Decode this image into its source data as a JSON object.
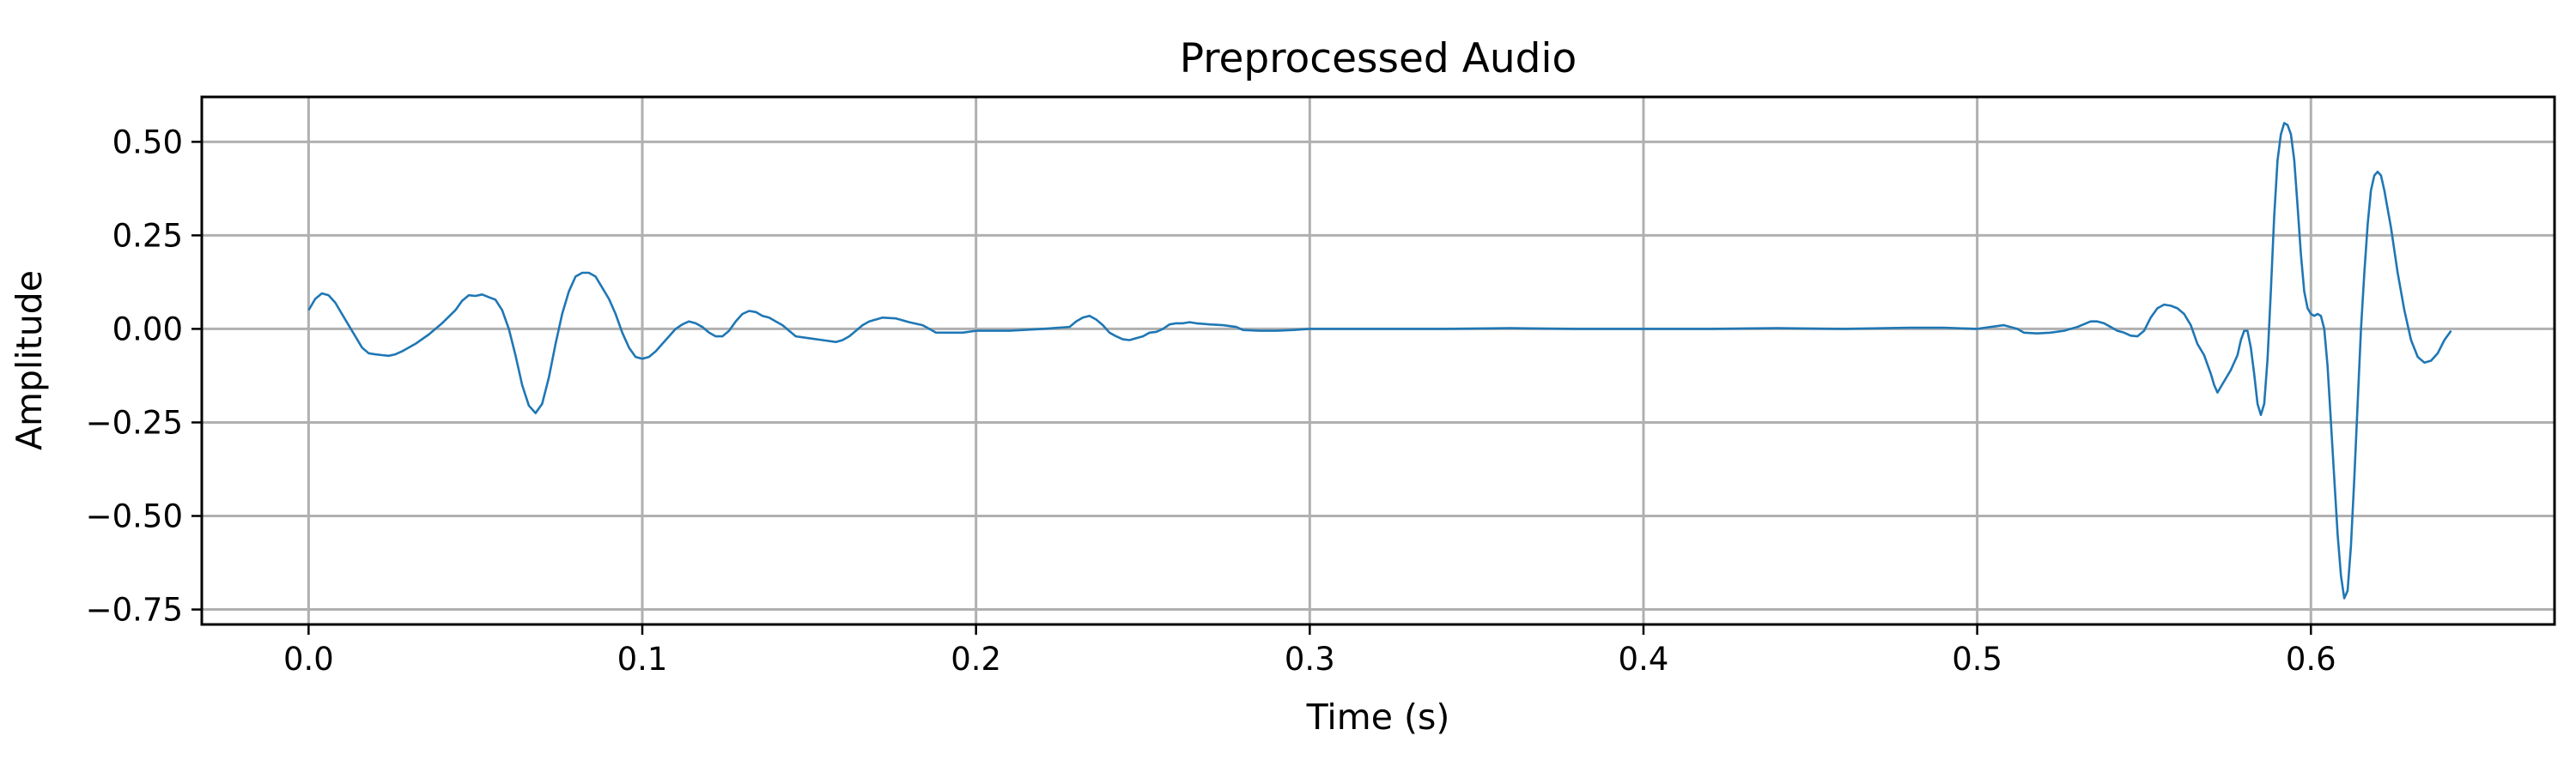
{
  "chart_data": {
    "type": "line",
    "title": "Preprocessed Audio",
    "xlabel": "Time (s)",
    "ylabel": "Amplitude",
    "xlim": [
      -0.032,
      0.673
    ],
    "ylim": [
      -0.79,
      0.62
    ],
    "x_ticks": [
      0.0,
      0.1,
      0.2,
      0.3,
      0.4,
      0.5,
      0.6
    ],
    "x_tick_labels": [
      "0.0",
      "0.1",
      "0.2",
      "0.3",
      "0.4",
      "0.5",
      "0.6"
    ],
    "y_ticks": [
      0.5,
      0.25,
      0.0,
      -0.25,
      -0.5,
      -0.75
    ],
    "y_tick_labels": [
      "0.50",
      "0.25",
      "0.00",
      "−0.25",
      "−0.50",
      "−0.75"
    ],
    "grid": true,
    "series_color": "#1f77b4",
    "series": [
      {
        "points": [
          [
            0.0,
            0.05
          ],
          [
            0.002,
            0.08
          ],
          [
            0.004,
            0.095
          ],
          [
            0.006,
            0.09
          ],
          [
            0.008,
            0.07
          ],
          [
            0.01,
            0.04
          ],
          [
            0.012,
            0.01
          ],
          [
            0.014,
            -0.02
          ],
          [
            0.016,
            -0.05
          ],
          [
            0.018,
            -0.065
          ],
          [
            0.02,
            -0.068
          ],
          [
            0.022,
            -0.07
          ],
          [
            0.024,
            -0.072
          ],
          [
            0.026,
            -0.068
          ],
          [
            0.028,
            -0.06
          ],
          [
            0.032,
            -0.04
          ],
          [
            0.036,
            -0.015
          ],
          [
            0.04,
            0.015
          ],
          [
            0.044,
            0.05
          ],
          [
            0.046,
            0.075
          ],
          [
            0.048,
            0.09
          ],
          [
            0.05,
            0.088
          ],
          [
            0.052,
            0.092
          ],
          [
            0.054,
            0.085
          ],
          [
            0.056,
            0.078
          ],
          [
            0.058,
            0.05
          ],
          [
            0.06,
            0.0
          ],
          [
            0.062,
            -0.07
          ],
          [
            0.064,
            -0.15
          ],
          [
            0.066,
            -0.205
          ],
          [
            0.068,
            -0.225
          ],
          [
            0.07,
            -0.2
          ],
          [
            0.072,
            -0.13
          ],
          [
            0.074,
            -0.04
          ],
          [
            0.076,
            0.04
          ],
          [
            0.078,
            0.1
          ],
          [
            0.08,
            0.14
          ],
          [
            0.082,
            0.15
          ],
          [
            0.084,
            0.15
          ],
          [
            0.086,
            0.14
          ],
          [
            0.088,
            0.11
          ],
          [
            0.09,
            0.08
          ],
          [
            0.092,
            0.04
          ],
          [
            0.094,
            -0.01
          ],
          [
            0.096,
            -0.05
          ],
          [
            0.098,
            -0.075
          ],
          [
            0.1,
            -0.08
          ],
          [
            0.102,
            -0.075
          ],
          [
            0.104,
            -0.06
          ],
          [
            0.106,
            -0.04
          ],
          [
            0.108,
            -0.02
          ],
          [
            0.11,
            0.0
          ],
          [
            0.112,
            0.012
          ],
          [
            0.114,
            0.02
          ],
          [
            0.116,
            0.015
          ],
          [
            0.118,
            0.005
          ],
          [
            0.12,
            -0.01
          ],
          [
            0.122,
            -0.02
          ],
          [
            0.124,
            -0.02
          ],
          [
            0.126,
            -0.005
          ],
          [
            0.128,
            0.02
          ],
          [
            0.13,
            0.04
          ],
          [
            0.132,
            0.048
          ],
          [
            0.134,
            0.045
          ],
          [
            0.136,
            0.035
          ],
          [
            0.138,
            0.03
          ],
          [
            0.14,
            0.02
          ],
          [
            0.142,
            0.01
          ],
          [
            0.144,
            -0.005
          ],
          [
            0.146,
            -0.02
          ],
          [
            0.15,
            -0.025
          ],
          [
            0.154,
            -0.03
          ],
          [
            0.158,
            -0.035
          ],
          [
            0.16,
            -0.03
          ],
          [
            0.162,
            -0.02
          ],
          [
            0.164,
            -0.005
          ],
          [
            0.166,
            0.01
          ],
          [
            0.168,
            0.02
          ],
          [
            0.17,
            0.025
          ],
          [
            0.172,
            0.03
          ],
          [
            0.176,
            0.028
          ],
          [
            0.18,
            0.018
          ],
          [
            0.184,
            0.01
          ],
          [
            0.186,
            0.0
          ],
          [
            0.188,
            -0.01
          ],
          [
            0.192,
            -0.01
          ],
          [
            0.196,
            -0.01
          ],
          [
            0.2,
            -0.005
          ],
          [
            0.21,
            -0.005
          ],
          [
            0.22,
            0.0
          ],
          [
            0.228,
            0.005
          ],
          [
            0.23,
            0.02
          ],
          [
            0.232,
            0.03
          ],
          [
            0.234,
            0.035
          ],
          [
            0.236,
            0.025
          ],
          [
            0.238,
            0.01
          ],
          [
            0.24,
            -0.01
          ],
          [
            0.242,
            -0.02
          ],
          [
            0.244,
            -0.028
          ],
          [
            0.246,
            -0.03
          ],
          [
            0.248,
            -0.025
          ],
          [
            0.25,
            -0.02
          ],
          [
            0.252,
            -0.01
          ],
          [
            0.254,
            -0.008
          ],
          [
            0.256,
            0.0
          ],
          [
            0.258,
            0.012
          ],
          [
            0.26,
            0.015
          ],
          [
            0.262,
            0.015
          ],
          [
            0.264,
            0.018
          ],
          [
            0.266,
            0.015
          ],
          [
            0.27,
            0.012
          ],
          [
            0.274,
            0.01
          ],
          [
            0.278,
            0.005
          ],
          [
            0.28,
            -0.003
          ],
          [
            0.285,
            -0.005
          ],
          [
            0.29,
            -0.005
          ],
          [
            0.295,
            -0.003
          ],
          [
            0.3,
            0.0
          ],
          [
            0.31,
            0.0
          ],
          [
            0.32,
            0.0
          ],
          [
            0.34,
            0.0
          ],
          [
            0.36,
            0.002
          ],
          [
            0.38,
            0.0
          ],
          [
            0.4,
            0.0
          ],
          [
            0.42,
            0.0
          ],
          [
            0.44,
            0.002
          ],
          [
            0.46,
            0.0
          ],
          [
            0.48,
            0.003
          ],
          [
            0.49,
            0.003
          ],
          [
            0.5,
            0.0
          ],
          [
            0.504,
            0.005
          ],
          [
            0.508,
            0.01
          ],
          [
            0.512,
            0.0
          ],
          [
            0.514,
            -0.01
          ],
          [
            0.518,
            -0.012
          ],
          [
            0.522,
            -0.01
          ],
          [
            0.526,
            -0.005
          ],
          [
            0.53,
            0.005
          ],
          [
            0.534,
            0.02
          ],
          [
            0.536,
            0.02
          ],
          [
            0.538,
            0.015
          ],
          [
            0.54,
            0.005
          ],
          [
            0.542,
            -0.005
          ],
          [
            0.544,
            -0.01
          ],
          [
            0.546,
            -0.018
          ],
          [
            0.548,
            -0.02
          ],
          [
            0.55,
            -0.005
          ],
          [
            0.552,
            0.03
          ],
          [
            0.554,
            0.055
          ],
          [
            0.556,
            0.065
          ],
          [
            0.558,
            0.062
          ],
          [
            0.56,
            0.055
          ],
          [
            0.562,
            0.04
          ],
          [
            0.564,
            0.01
          ],
          [
            0.566,
            -0.04
          ],
          [
            0.568,
            -0.07
          ],
          [
            0.57,
            -0.12
          ],
          [
            0.571,
            -0.15
          ],
          [
            0.572,
            -0.17
          ],
          [
            0.574,
            -0.14
          ],
          [
            0.576,
            -0.11
          ],
          [
            0.578,
            -0.07
          ],
          [
            0.579,
            -0.03
          ],
          [
            0.58,
            -0.005
          ],
          [
            0.581,
            -0.005
          ],
          [
            0.582,
            -0.05
          ],
          [
            0.583,
            -0.12
          ],
          [
            0.584,
            -0.2
          ],
          [
            0.585,
            -0.23
          ],
          [
            0.586,
            -0.2
          ],
          [
            0.587,
            -0.08
          ],
          [
            0.588,
            0.1
          ],
          [
            0.589,
            0.3
          ],
          [
            0.59,
            0.45
          ],
          [
            0.591,
            0.52
          ],
          [
            0.592,
            0.55
          ],
          [
            0.593,
            0.545
          ],
          [
            0.594,
            0.52
          ],
          [
            0.595,
            0.45
          ],
          [
            0.596,
            0.33
          ],
          [
            0.597,
            0.2
          ],
          [
            0.598,
            0.1
          ],
          [
            0.599,
            0.055
          ],
          [
            0.6,
            0.04
          ],
          [
            0.601,
            0.035
          ],
          [
            0.602,
            0.04
          ],
          [
            0.603,
            0.035
          ],
          [
            0.604,
            0.0
          ],
          [
            0.605,
            -0.1
          ],
          [
            0.606,
            -0.25
          ],
          [
            0.607,
            -0.4
          ],
          [
            0.608,
            -0.55
          ],
          [
            0.609,
            -0.66
          ],
          [
            0.61,
            -0.72
          ],
          [
            0.611,
            -0.7
          ],
          [
            0.612,
            -0.58
          ],
          [
            0.613,
            -0.4
          ],
          [
            0.614,
            -0.2
          ],
          [
            0.615,
            0.0
          ],
          [
            0.616,
            0.15
          ],
          [
            0.617,
            0.28
          ],
          [
            0.618,
            0.37
          ],
          [
            0.619,
            0.41
          ],
          [
            0.62,
            0.42
          ],
          [
            0.621,
            0.41
          ],
          [
            0.622,
            0.37
          ],
          [
            0.624,
            0.27
          ],
          [
            0.626,
            0.15
          ],
          [
            0.628,
            0.05
          ],
          [
            0.63,
            -0.03
          ],
          [
            0.632,
            -0.075
          ],
          [
            0.634,
            -0.09
          ],
          [
            0.636,
            -0.085
          ],
          [
            0.638,
            -0.065
          ],
          [
            0.64,
            -0.03
          ],
          [
            0.642,
            -0.005
          ]
        ]
      }
    ]
  }
}
